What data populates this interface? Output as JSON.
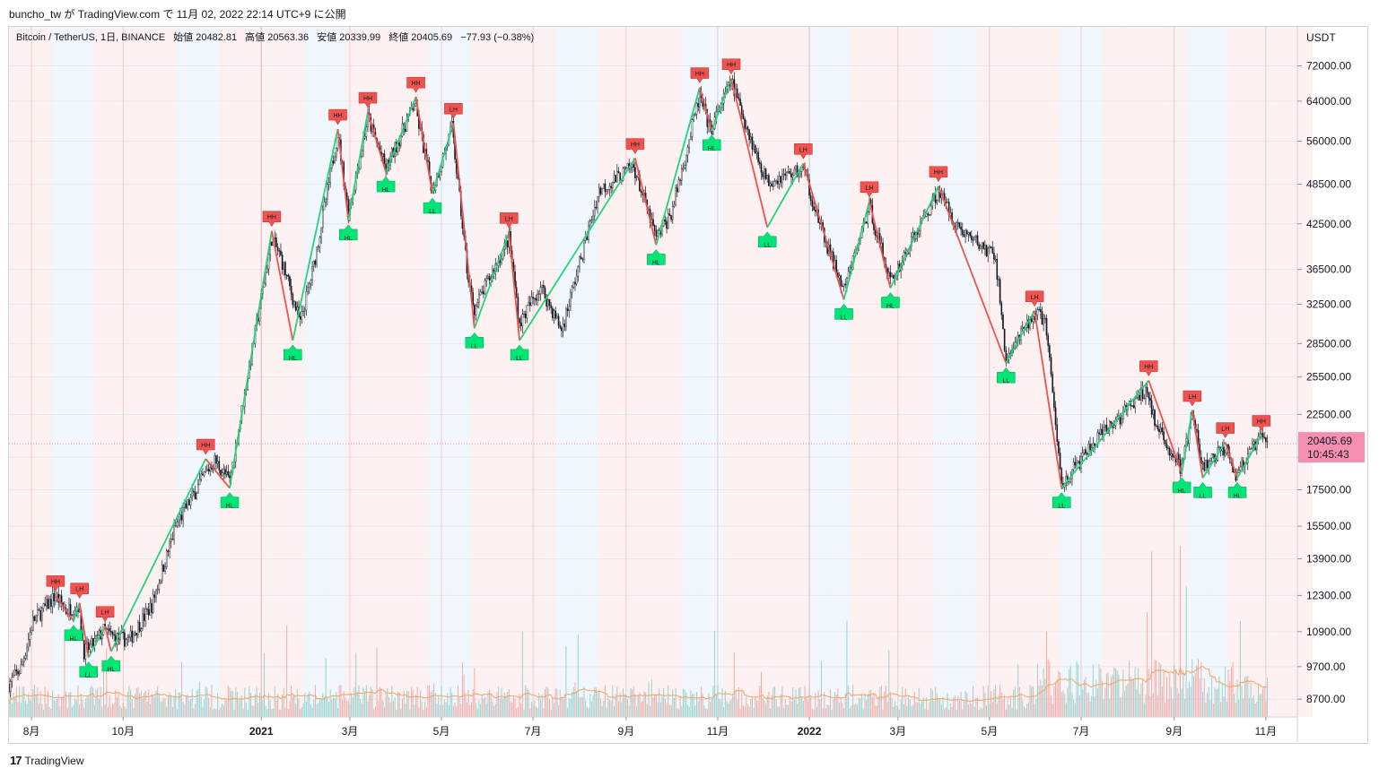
{
  "header": {
    "caption": "buncho_tw が TradingView.com で 11月 02, 2022 22:14 UTC+9 に公開"
  },
  "legend": {
    "symbol": "Bitcoin / TetherUS, 1日, BINANCE",
    "open_label": "始値",
    "open": "20482.81",
    "high_label": "高値",
    "high": "20563.36",
    "low_label": "安値",
    "low": "20339.99",
    "close_label": "終値",
    "close": "20405.69",
    "change": "−77.93 (−0.38%)"
  },
  "price_axis": {
    "currency": "USDT",
    "current_price": "20405.69",
    "countdown": "10:45:43"
  },
  "footer": {
    "logo": "17",
    "brand": "TradingView"
  },
  "colors": {
    "up_line": "#22d47a",
    "down_line": "#ef5350",
    "higher_marker": "#ef5350",
    "lower_marker": "#00e676",
    "price_badge": "#f48fb1",
    "volume_ma": "#f4a460",
    "band_red": "#fdeeee",
    "band_blue": "#eef6fb"
  },
  "chart_data": {
    "type": "line",
    "title": "Bitcoin / TetherUS, 1日, BINANCE",
    "scale": "log",
    "ylim": [
      8200,
      82000
    ],
    "xlim": [
      "2020-07-17",
      "2022-11-22"
    ],
    "y_ticks": [
      8700,
      9700,
      10900,
      12300,
      13900,
      15500,
      17500,
      19500,
      22500,
      25500,
      28500,
      32500,
      36500,
      42500,
      48500,
      56000,
      64000,
      72000
    ],
    "y_tick_labels": [
      "8700.00",
      "9700.00",
      "10900.00",
      "12300.00",
      "13900.00",
      "15500.00",
      "17500.00",
      "19500.00",
      "22500.00",
      "25500.00",
      "28500.00",
      "32500.00",
      "36500.00",
      "42500.00",
      "48500.00",
      "56000.00",
      "64000.00",
      "72000.00"
    ],
    "x_ticks": [
      {
        "date": "2020-08-01",
        "label": "8月",
        "bold": false
      },
      {
        "date": "2020-10-01",
        "label": "10月",
        "bold": false
      },
      {
        "date": "2021-01-01",
        "label": "2021",
        "bold": true
      },
      {
        "date": "2021-03-01",
        "label": "3月",
        "bold": false
      },
      {
        "date": "2021-05-01",
        "label": "5月",
        "bold": false
      },
      {
        "date": "2021-07-01",
        "label": "7月",
        "bold": false
      },
      {
        "date": "2021-09-01",
        "label": "9月",
        "bold": false
      },
      {
        "date": "2021-11-01",
        "label": "11月",
        "bold": false
      },
      {
        "date": "2022-01-01",
        "label": "2022",
        "bold": true
      },
      {
        "date": "2022-03-01",
        "label": "3月",
        "bold": false
      },
      {
        "date": "2022-05-01",
        "label": "5月",
        "bold": false
      },
      {
        "date": "2022-07-01",
        "label": "7月",
        "bold": false
      },
      {
        "date": "2022-09-01",
        "label": "9月",
        "bold": false
      },
      {
        "date": "2022-11-01",
        "label": "11月",
        "bold": false
      }
    ],
    "price_path": [
      [
        "2020-07-17",
        9150
      ],
      [
        "2020-07-25",
        9650
      ],
      [
        "2020-08-02",
        11300
      ],
      [
        "2020-08-10",
        11800
      ],
      [
        "2020-08-17",
        12300
      ],
      [
        "2020-08-24",
        11700
      ],
      [
        "2020-09-01",
        11900
      ],
      [
        "2020-09-05",
        10200
      ],
      [
        "2020-09-10",
        10400
      ],
      [
        "2020-09-18",
        10950
      ],
      [
        "2020-09-25",
        10700
      ],
      [
        "2020-10-05",
        10600
      ],
      [
        "2020-10-20",
        11900
      ],
      [
        "2020-11-05",
        15500
      ],
      [
        "2020-11-25",
        18500
      ],
      [
        "2020-12-01",
        19300
      ],
      [
        "2020-12-11",
        18000
      ],
      [
        "2020-12-20",
        23500
      ],
      [
        "2021-01-08",
        40500
      ],
      [
        "2021-01-14",
        38000
      ],
      [
        "2021-01-27",
        30500
      ],
      [
        "2021-02-05",
        37000
      ],
      [
        "2021-02-21",
        57500
      ],
      [
        "2021-02-28",
        44000
      ],
      [
        "2021-03-13",
        60500
      ],
      [
        "2021-03-25",
        51000
      ],
      [
        "2021-04-13",
        63500
      ],
      [
        "2021-04-25",
        47500
      ],
      [
        "2021-05-08",
        58500
      ],
      [
        "2021-05-19",
        35000
      ],
      [
        "2021-05-23",
        32000
      ],
      [
        "2021-06-15",
        40500
      ],
      [
        "2021-06-22",
        30500
      ],
      [
        "2021-07-06",
        34500
      ],
      [
        "2021-07-20",
        29800
      ],
      [
        "2021-08-14",
        47500
      ],
      [
        "2021-09-06",
        51500
      ],
      [
        "2021-09-21",
        40500
      ],
      [
        "2021-10-01",
        44000
      ],
      [
        "2021-10-20",
        65000
      ],
      [
        "2021-10-27",
        58000
      ],
      [
        "2021-11-10",
        68500
      ],
      [
        "2021-11-26",
        54000
      ],
      [
        "2021-12-04",
        49000
      ],
      [
        "2021-12-28",
        51000
      ],
      [
        "2022-01-10",
        41000
      ],
      [
        "2022-01-24",
        34000
      ],
      [
        "2022-02-10",
        45000
      ],
      [
        "2022-02-24",
        35000
      ],
      [
        "2022-03-28",
        47500
      ],
      [
        "2022-04-10",
        42000
      ],
      [
        "2022-05-05",
        38000
      ],
      [
        "2022-05-12",
        27000
      ],
      [
        "2022-05-31",
        31500
      ],
      [
        "2022-06-07",
        31000
      ],
      [
        "2022-06-18",
        17800
      ],
      [
        "2022-07-10",
        20500
      ],
      [
        "2022-08-14",
        24500
      ],
      [
        "2022-08-20",
        21500
      ],
      [
        "2022-09-06",
        18800
      ],
      [
        "2022-09-13",
        22500
      ],
      [
        "2022-09-20",
        18800
      ],
      [
        "2022-10-06",
        20300
      ],
      [
        "2022-10-12",
        18400
      ],
      [
        "2022-10-29",
        20900
      ],
      [
        "2022-11-02",
        20405.69
      ]
    ],
    "swing_lines": [
      [
        "2020-08-17",
        12300
      ],
      [
        "2020-08-29",
        11300
      ],
      [
        "2020-09-02",
        12000
      ],
      [
        "2020-09-08",
        10000
      ],
      [
        "2020-09-19",
        11100
      ],
      [
        "2020-09-23",
        10200
      ],
      [
        "2020-11-25",
        19400
      ],
      [
        "2020-12-11",
        17600
      ],
      [
        "2021-01-08",
        41500
      ],
      [
        "2021-01-22",
        28800
      ],
      [
        "2021-02-21",
        58300
      ],
      [
        "2021-02-28",
        43000
      ],
      [
        "2021-03-13",
        61700
      ],
      [
        "2021-03-25",
        50500
      ],
      [
        "2021-04-14",
        64900
      ],
      [
        "2021-04-25",
        47000
      ],
      [
        "2021-05-09",
        59500
      ],
      [
        "2021-05-23",
        30000
      ],
      [
        "2021-06-15",
        41300
      ],
      [
        "2021-06-22",
        28800
      ],
      [
        "2021-09-07",
        52900
      ],
      [
        "2021-09-21",
        39600
      ],
      [
        "2021-10-20",
        67000
      ],
      [
        "2021-10-28",
        58000
      ],
      [
        "2021-11-10",
        69000
      ],
      [
        "2021-12-04",
        42000
      ],
      [
        "2021-12-28",
        52000
      ],
      [
        "2022-01-24",
        33000
      ],
      [
        "2022-02-10",
        45800
      ],
      [
        "2022-02-24",
        34300
      ],
      [
        "2022-03-28",
        48200
      ],
      [
        "2022-05-12",
        26700
      ],
      [
        "2022-05-31",
        31800
      ],
      [
        "2022-06-18",
        17600
      ],
      [
        "2022-08-15",
        25200
      ],
      [
        "2022-09-06",
        18500
      ],
      [
        "2022-09-13",
        22800
      ],
      [
        "2022-09-20",
        18200
      ],
      [
        "2022-10-05",
        20500
      ],
      [
        "2022-10-13",
        18200
      ],
      [
        "2022-10-29",
        21000
      ]
    ],
    "swing_markers": [
      {
        "date": "2020-08-17",
        "price": 12300,
        "label": "HH",
        "kind": "high"
      },
      {
        "date": "2020-08-29",
        "price": 11300,
        "label": "HL",
        "kind": "low"
      },
      {
        "date": "2020-09-02",
        "price": 12000,
        "label": "LH",
        "kind": "high"
      },
      {
        "date": "2020-09-08",
        "price": 10000,
        "label": "LL",
        "kind": "low"
      },
      {
        "date": "2020-09-19",
        "price": 11100,
        "label": "LH",
        "kind": "high"
      },
      {
        "date": "2020-09-23",
        "price": 10200,
        "label": "HL",
        "kind": "low"
      },
      {
        "date": "2020-11-25",
        "price": 19400,
        "label": "HH",
        "kind": "high"
      },
      {
        "date": "2020-12-11",
        "price": 17600,
        "label": "HL",
        "kind": "low"
      },
      {
        "date": "2021-01-08",
        "price": 41500,
        "label": "HH",
        "kind": "high"
      },
      {
        "date": "2021-01-22",
        "price": 28800,
        "label": "HL",
        "kind": "low"
      },
      {
        "date": "2021-02-21",
        "price": 58300,
        "label": "HH",
        "kind": "high"
      },
      {
        "date": "2021-02-28",
        "price": 43000,
        "label": "HL",
        "kind": "low"
      },
      {
        "date": "2021-03-13",
        "price": 61700,
        "label": "HH",
        "kind": "high"
      },
      {
        "date": "2021-03-25",
        "price": 50500,
        "label": "HL",
        "kind": "low"
      },
      {
        "date": "2021-04-14",
        "price": 64900,
        "label": "HH",
        "kind": "high"
      },
      {
        "date": "2021-04-25",
        "price": 47000,
        "label": "LL",
        "kind": "low"
      },
      {
        "date": "2021-05-09",
        "price": 59500,
        "label": "LH",
        "kind": "high"
      },
      {
        "date": "2021-05-23",
        "price": 30000,
        "label": "LL",
        "kind": "low"
      },
      {
        "date": "2021-06-15",
        "price": 41300,
        "label": "LH",
        "kind": "high"
      },
      {
        "date": "2021-06-22",
        "price": 28800,
        "label": "LL",
        "kind": "low"
      },
      {
        "date": "2021-09-07",
        "price": 52900,
        "label": "HH",
        "kind": "high"
      },
      {
        "date": "2021-09-21",
        "price": 39600,
        "label": "HL",
        "kind": "low"
      },
      {
        "date": "2021-10-20",
        "price": 67000,
        "label": "HH",
        "kind": "high"
      },
      {
        "date": "2021-10-28",
        "price": 58000,
        "label": "HL",
        "kind": "low"
      },
      {
        "date": "2021-11-10",
        "price": 69000,
        "label": "HH",
        "kind": "high"
      },
      {
        "date": "2021-12-04",
        "price": 42000,
        "label": "LL",
        "kind": "low"
      },
      {
        "date": "2021-12-28",
        "price": 52000,
        "label": "LH",
        "kind": "high"
      },
      {
        "date": "2022-01-24",
        "price": 33000,
        "label": "LL",
        "kind": "low"
      },
      {
        "date": "2022-02-10",
        "price": 45800,
        "label": "LH",
        "kind": "high"
      },
      {
        "date": "2022-02-24",
        "price": 34300,
        "label": "HL",
        "kind": "low"
      },
      {
        "date": "2022-03-28",
        "price": 48200,
        "label": "HH",
        "kind": "high"
      },
      {
        "date": "2022-05-12",
        "price": 26700,
        "label": "LL",
        "kind": "low"
      },
      {
        "date": "2022-05-31",
        "price": 31800,
        "label": "LH",
        "kind": "high"
      },
      {
        "date": "2022-06-18",
        "price": 17600,
        "label": "LL",
        "kind": "low"
      },
      {
        "date": "2022-08-15",
        "price": 25200,
        "label": "HH",
        "kind": "high"
      },
      {
        "date": "2022-09-06",
        "price": 18500,
        "label": "HL",
        "kind": "low"
      },
      {
        "date": "2022-09-13",
        "price": 22800,
        "label": "LH",
        "kind": "high"
      },
      {
        "date": "2022-09-20",
        "price": 18200,
        "label": "LL",
        "kind": "low"
      },
      {
        "date": "2022-10-05",
        "price": 20500,
        "label": "LH",
        "kind": "high"
      },
      {
        "date": "2022-10-13",
        "price": 18200,
        "label": "HL",
        "kind": "low"
      },
      {
        "date": "2022-10-29",
        "price": 21000,
        "label": "HH",
        "kind": "high"
      }
    ],
    "last_price": 20405.69
  }
}
